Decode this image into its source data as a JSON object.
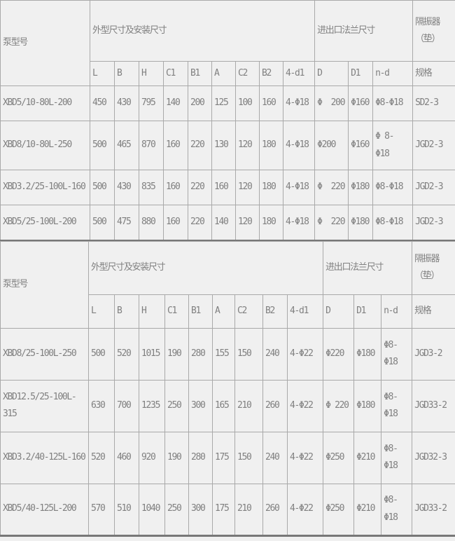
{
  "colors": {
    "background": "#f0f0f0",
    "grid_line": "#a9a9a9",
    "text": "#808080",
    "heavy_rule": "#787878"
  },
  "headers": {
    "model": "泵型号",
    "dims_group": "外型尺寸及安装尺寸",
    "flange_group": "进出口法兰尺寸",
    "isolator_group": "隔振器\n（垫）",
    "sub": [
      "L",
      "B",
      "H",
      "C1",
      "B1",
      "A",
      "C2",
      "B2",
      "4-d1",
      "D",
      "D1",
      "n-d",
      "规格"
    ]
  },
  "table1": {
    "rows": [
      [
        "XBD5/10-80L-200",
        "450",
        "430",
        "795",
        "140",
        "200",
        "125",
        "100",
        "160",
        "4-Φ18",
        "Φ  200",
        "Φ160",
        "Φ8-Φ18",
        "SD2-3"
      ],
      [
        "XBD8/10-80L-250",
        "500",
        "465",
        "870",
        "160",
        "220",
        "130",
        "120",
        "180",
        "4-Φ18",
        "Φ200",
        "Φ160",
        "Φ 8-\nΦ18",
        "JGD2-3"
      ],
      [
        "XBD3.2/25-100L-160",
        "500",
        "430",
        "835",
        "160",
        "220",
        "160",
        "120",
        "180",
        "4-Φ18",
        "Φ  220",
        "Φ180",
        "Φ8-Φ18",
        "JGD2-3"
      ],
      [
        "XBD5/25-100L-200",
        "500",
        "475",
        "880",
        "160",
        "220",
        "140",
        "120",
        "180",
        "4-Φ18",
        "Φ  220",
        "Φ180",
        "Φ8-Φ18",
        "JGD2-3"
      ]
    ]
  },
  "table2": {
    "rows": [
      [
        "XBD8/25-100L-250",
        "500",
        "520",
        "1015",
        "190",
        "280",
        "155",
        "150",
        "240",
        "4-Φ22",
        "Φ220",
        "Φ180",
        "Φ8-\nΦ18",
        "JGD3-2"
      ],
      [
        "XBD12.5/25-100L-\n315",
        "630",
        "700",
        "1235",
        "250",
        "300",
        "165",
        "210",
        "260",
        "4-Φ22",
        "Φ 220",
        "Φ180",
        "Φ8-\nΦ18",
        "JGD33-2"
      ],
      [
        "XBD3.2/40-125L-160",
        "520",
        "460",
        "920",
        "190",
        "280",
        "175",
        "150",
        "240",
        "4-Φ22",
        "Φ250",
        "Φ210",
        "Φ8-\nΦ18",
        "JGD32-3"
      ],
      [
        "XBD5/40-125L-200",
        "570",
        "510",
        "1040",
        "250",
        "300",
        "175",
        "210",
        "260",
        "4-Φ22",
        "Φ250",
        "Φ210",
        "Φ8-\nΦ18",
        "JGD33-2"
      ]
    ]
  }
}
